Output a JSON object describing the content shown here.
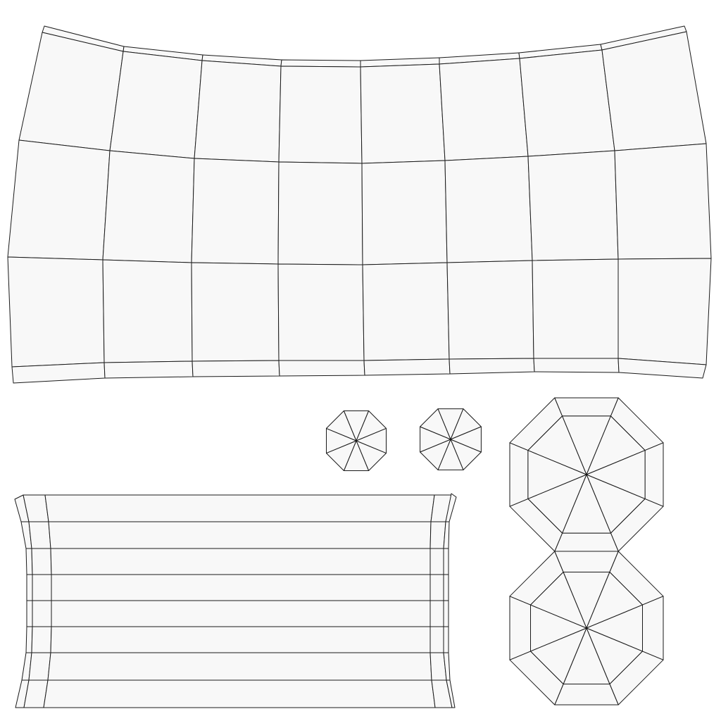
{
  "page": {
    "background": "#ffffff"
  },
  "style": {
    "face_fill": "#f8f8f8",
    "edge_color": "#1a1a1a"
  },
  "islands": [
    {
      "id": "large-curved-panel",
      "kind": "curved quad strip",
      "rows": 3,
      "columns": 8
    },
    {
      "id": "lower-band-panel",
      "kind": "band strip",
      "rows": 8
    },
    {
      "id": "small-octagon-cap-left",
      "kind": "octagon fan",
      "segments": 8
    },
    {
      "id": "small-octagon-cap-right",
      "kind": "octagon fan",
      "segments": 8
    },
    {
      "id": "large-octagon-cap-upper",
      "kind": "octagon fan with inset ring",
      "segments": 8
    },
    {
      "id": "large-octagon-cap-lower",
      "kind": "octagon fan with inset ring",
      "segments": 8
    }
  ]
}
